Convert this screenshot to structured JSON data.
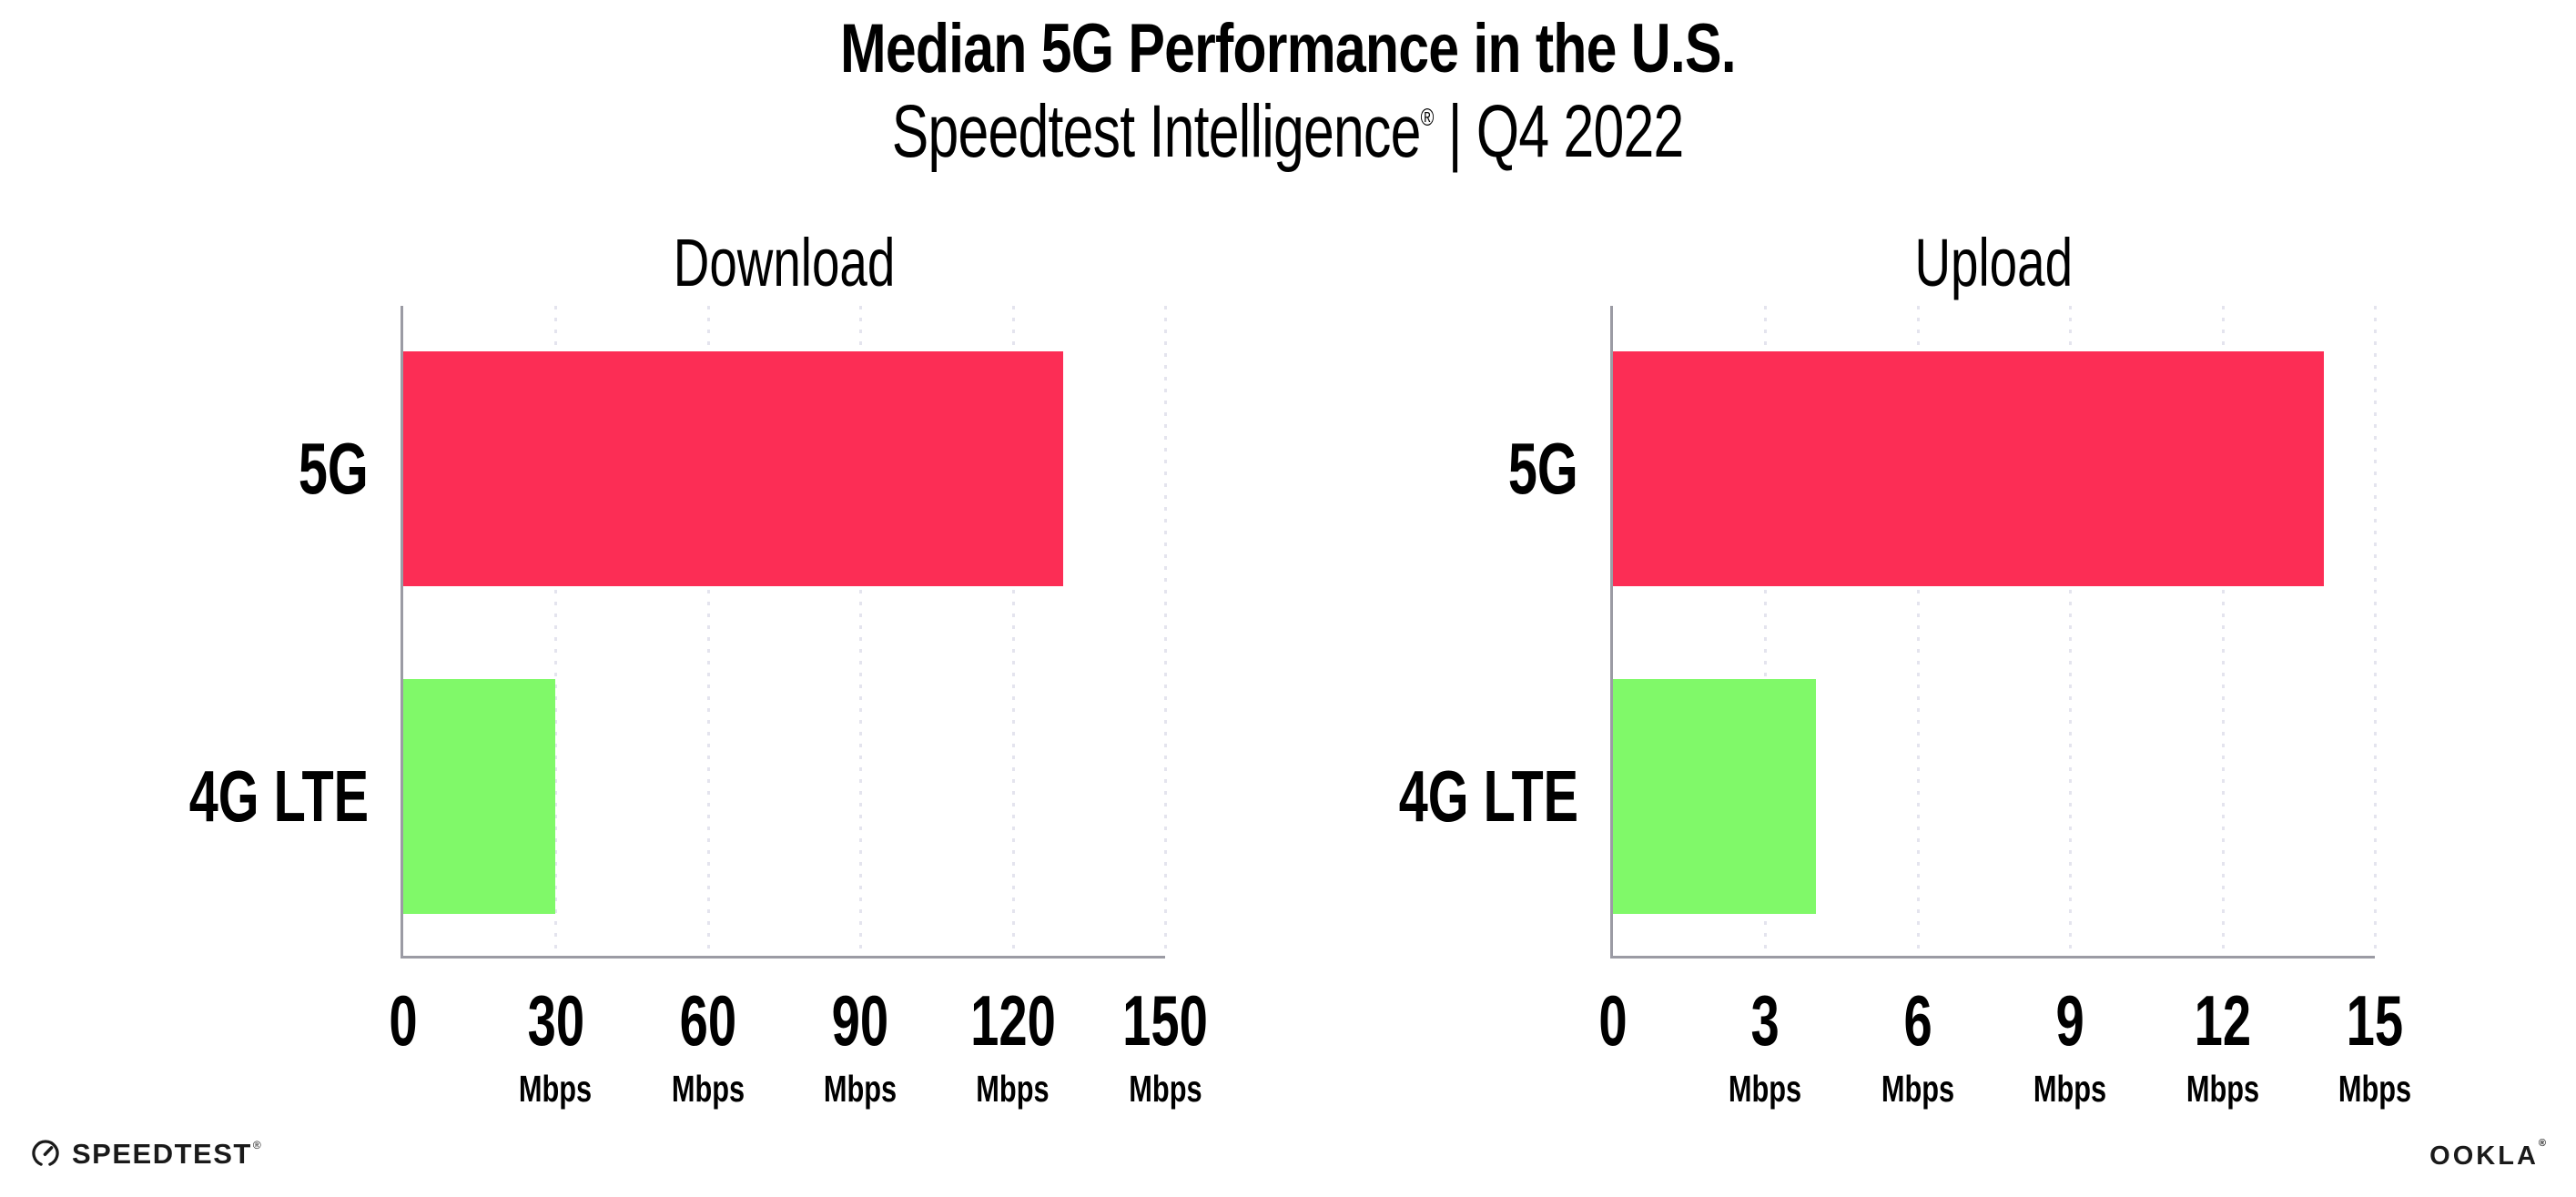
{
  "header": {
    "title": "Median 5G Performance in the U.S.",
    "subtitle_brand": "Speedtest Intelligence",
    "subtitle_reg": "®",
    "subtitle_rest": " | Q4 2022"
  },
  "chart_data": [
    {
      "type": "bar",
      "orientation": "horizontal",
      "title": "Download",
      "categories": [
        "5G",
        "4G LTE"
      ],
      "values": [
        130,
        30
      ],
      "unit": "Mbps",
      "xlim": [
        0,
        150
      ],
      "xticks": [
        0,
        30,
        60,
        90,
        120,
        150
      ],
      "bar_colors": [
        "#fc2d55",
        "#80f969"
      ],
      "grid": "vertical-dotted",
      "legend": "none"
    },
    {
      "type": "bar",
      "orientation": "horizontal",
      "title": "Upload",
      "categories": [
        "5G",
        "4G LTE"
      ],
      "values": [
        14,
        4
      ],
      "unit": "Mbps",
      "xlim": [
        0,
        15
      ],
      "xticks": [
        0,
        3,
        6,
        9,
        12,
        15
      ],
      "bar_colors": [
        "#fc2d55",
        "#80f969"
      ],
      "grid": "vertical-dotted",
      "legend": "none"
    }
  ],
  "footer": {
    "speedtest_label": "SPEEDTEST",
    "speedtest_reg": "®",
    "ookla_label": "OOKLA",
    "ookla_reg": "®"
  },
  "colors": {
    "bar_5g": "#fc2d55",
    "bar_4g_lte": "#80f969",
    "axis": "#9b9ba4",
    "gridline": "#e4e4ee",
    "text": "#000000",
    "logo": "#1a1a1a"
  }
}
